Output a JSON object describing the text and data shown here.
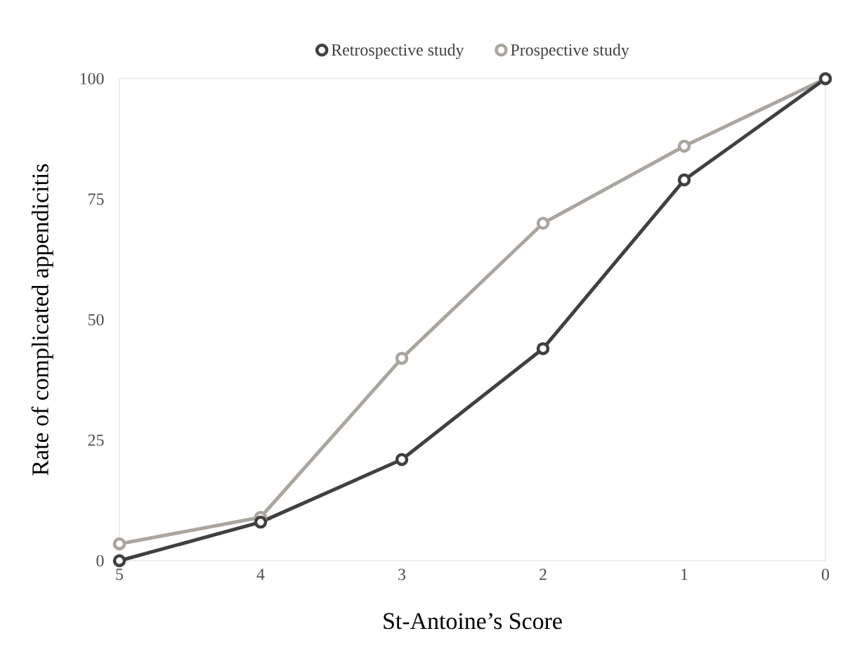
{
  "chart_data": {
    "type": "line",
    "xlabel": "St-Antoine’s Score",
    "ylabel": "Rate of complicated appendicitis",
    "categories": [
      "5",
      "4",
      "3",
      "2",
      "1",
      "0"
    ],
    "series": [
      {
        "name": "Retrospective study",
        "color": "#404040",
        "values": [
          0,
          8,
          21,
          44,
          79,
          100
        ]
      },
      {
        "name": "Prospective study",
        "color": "#aaa59f",
        "values": [
          3.5,
          9,
          42,
          70,
          86,
          100
        ]
      }
    ],
    "ylim": [
      0,
      100
    ],
    "yticks": [
      0,
      25,
      50,
      75,
      100
    ],
    "legend": "top",
    "marker": "circle",
    "line_style": "solid",
    "grid": false
  }
}
